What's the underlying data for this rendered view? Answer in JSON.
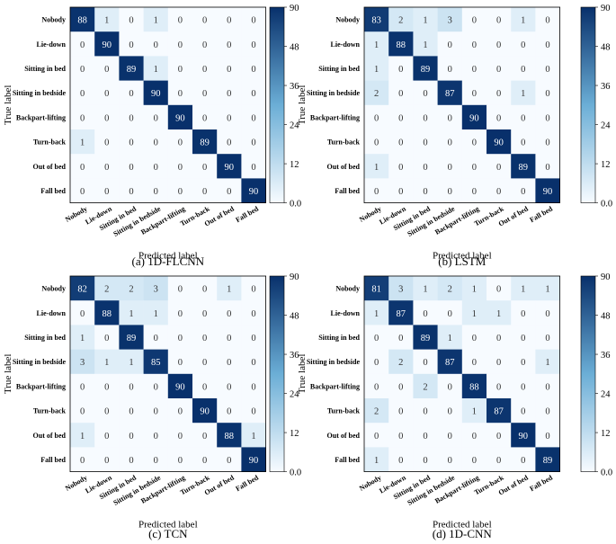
{
  "colormap": {
    "low": "#f7fbff",
    "mid": "#6baed6",
    "high": "#08306b"
  },
  "shared": {
    "class_labels": [
      "Nobody",
      "Lie-down",
      "Sitting in bed",
      "Sitting in bedside",
      "Backpart-lifting",
      "Turn-back",
      "Out of bed",
      "Fall bed"
    ]
  },
  "chart_data": [
    {
      "type": "heatmap",
      "title": "",
      "caption": "(a) 1D-FLCNN",
      "xlabel": "Predicted label",
      "ylabel": "True label",
      "x_categories": [
        "Nobody",
        "Lie-down",
        "Sitting in bed",
        "Sitting in bedside",
        "Backpart-lifting",
        "Turn-back",
        "Out of bed",
        "Fall bed"
      ],
      "y_categories": [
        "Nobody",
        "Lie-down",
        "Sitting in bed",
        "Sitting in bedside",
        "Backpart-lifting",
        "Turn-back",
        "Out of bed",
        "Fall bed"
      ],
      "matrix": [
        [
          88,
          1,
          0,
          1,
          0,
          0,
          0,
          0
        ],
        [
          0,
          90,
          0,
          0,
          0,
          0,
          0,
          0
        ],
        [
          0,
          0,
          89,
          1,
          0,
          0,
          0,
          0
        ],
        [
          0,
          0,
          0,
          90,
          0,
          0,
          0,
          0
        ],
        [
          0,
          0,
          0,
          0,
          90,
          0,
          0,
          0
        ],
        [
          1,
          0,
          0,
          0,
          0,
          89,
          0,
          0
        ],
        [
          0,
          0,
          0,
          0,
          0,
          0,
          90,
          0
        ],
        [
          0,
          0,
          0,
          0,
          0,
          0,
          0,
          90
        ]
      ],
      "colorbar": {
        "range": [
          0,
          90
        ],
        "ticks": [
          "90",
          "48",
          "36",
          "24",
          "12",
          "0.0"
        ]
      }
    },
    {
      "type": "heatmap",
      "title": "",
      "caption": "(b) LSTM",
      "xlabel": "Predicted label",
      "ylabel": "True label",
      "x_categories": [
        "Nobody",
        "Lie-down",
        "Sitting in bed",
        "Sitting in bedside",
        "Backpart-lifting",
        "Turn-back",
        "Out of bed",
        "Fall bed"
      ],
      "y_categories": [
        "Nobody",
        "Lie-down",
        "Sitting in bed",
        "Sitting in bedside",
        "Backpart-lifting",
        "Turn-back",
        "Out of bed",
        "Fall bed"
      ],
      "matrix": [
        [
          83,
          2,
          1,
          3,
          0,
          0,
          1,
          0
        ],
        [
          1,
          88,
          1,
          0,
          0,
          0,
          0,
          0
        ],
        [
          1,
          0,
          89,
          0,
          0,
          0,
          0,
          0
        ],
        [
          2,
          0,
          0,
          87,
          0,
          0,
          1,
          0
        ],
        [
          0,
          0,
          0,
          0,
          90,
          0,
          0,
          0
        ],
        [
          0,
          0,
          0,
          0,
          0,
          90,
          0,
          0
        ],
        [
          1,
          0,
          0,
          0,
          0,
          0,
          89,
          0
        ],
        [
          0,
          0,
          0,
          0,
          0,
          0,
          0,
          90
        ]
      ],
      "colorbar": {
        "range": [
          0,
          90
        ],
        "ticks": [
          "90",
          "48",
          "36",
          "24",
          "12",
          "0.0"
        ]
      }
    },
    {
      "type": "heatmap",
      "title": "",
      "caption": "(c) TCN",
      "xlabel": "Predicted label",
      "ylabel": "True label",
      "x_categories": [
        "Nobody",
        "Lie-down",
        "Sitting in bed",
        "Sitting in bedside",
        "Backpart-lifting",
        "Turn-back",
        "Out of bed",
        "Fall bed"
      ],
      "y_categories": [
        "Nobody",
        "Lie-down",
        "Sitting in bed",
        "Sitting in bedside",
        "Backpart-lifting",
        "Turn-back",
        "Out of bed",
        "Fall bed"
      ],
      "matrix": [
        [
          82,
          2,
          2,
          3,
          0,
          0,
          1,
          0
        ],
        [
          0,
          88,
          1,
          1,
          0,
          0,
          0,
          0
        ],
        [
          1,
          0,
          89,
          0,
          0,
          0,
          0,
          0
        ],
        [
          3,
          1,
          1,
          85,
          0,
          0,
          0,
          0
        ],
        [
          0,
          0,
          0,
          0,
          90,
          0,
          0,
          0
        ],
        [
          0,
          0,
          0,
          0,
          0,
          90,
          0,
          0
        ],
        [
          1,
          0,
          0,
          0,
          0,
          0,
          88,
          1
        ],
        [
          0,
          0,
          0,
          0,
          0,
          0,
          0,
          90
        ]
      ],
      "colorbar": {
        "range": [
          0,
          90
        ],
        "ticks": [
          "90",
          "48",
          "36",
          "24",
          "12",
          "0.0"
        ]
      }
    },
    {
      "type": "heatmap",
      "title": "",
      "caption": "(d) 1D-CNN",
      "xlabel": "Predicted label",
      "ylabel": "True label",
      "x_categories": [
        "Nobody",
        "Lie-down",
        "Sitting in bed",
        "Sitting in bedside",
        "Backpart-lifting",
        "Turn-back",
        "Out of bed",
        "Fall bed"
      ],
      "y_categories": [
        "Nobody",
        "Lie-down",
        "Sitting in bed",
        "Sitting in bedside",
        "Backpart-lifting",
        "Turn-back",
        "Out of bed",
        "Fall bed"
      ],
      "matrix": [
        [
          81,
          3,
          1,
          2,
          1,
          0,
          1,
          1
        ],
        [
          1,
          87,
          0,
          0,
          1,
          1,
          0,
          0
        ],
        [
          0,
          0,
          89,
          1,
          0,
          0,
          0,
          0
        ],
        [
          0,
          2,
          0,
          87,
          0,
          0,
          0,
          1
        ],
        [
          0,
          0,
          2,
          0,
          88,
          0,
          0,
          0
        ],
        [
          2,
          0,
          0,
          0,
          1,
          87,
          0,
          0
        ],
        [
          0,
          0,
          0,
          0,
          0,
          0,
          90,
          0
        ],
        [
          1,
          0,
          0,
          0,
          0,
          0,
          0,
          89
        ]
      ],
      "colorbar": {
        "range": [
          0,
          90
        ],
        "ticks": [
          "90",
          "48",
          "36",
          "24",
          "12",
          "0.0"
        ]
      }
    }
  ]
}
